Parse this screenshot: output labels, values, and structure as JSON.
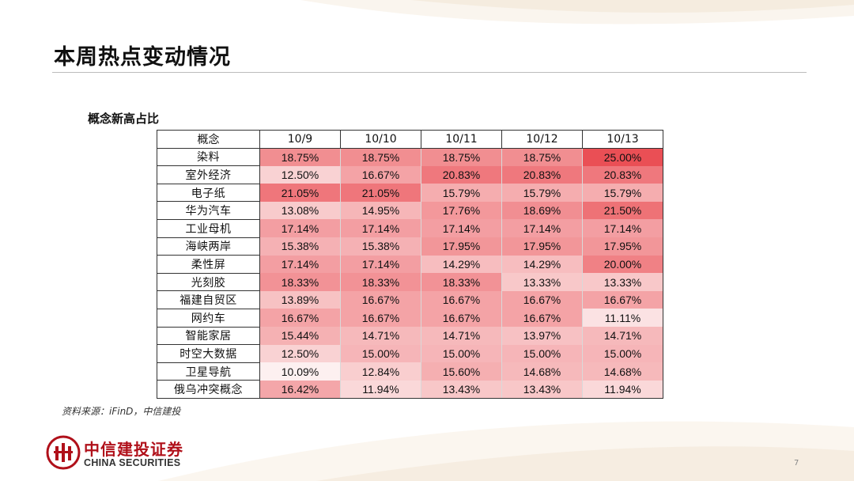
{
  "page_title": "本周热点变动情况",
  "section_title": "概念新高占比",
  "table": {
    "header": [
      "概念",
      "10/9",
      "10/10",
      "10/11",
      "10/12",
      "10/13"
    ],
    "rows": [
      {
        "name": "染料",
        "values": [
          "18.75%",
          "18.75%",
          "18.75%",
          "18.75%",
          "25.00%"
        ]
      },
      {
        "name": "室外经济",
        "values": [
          "12.50%",
          "16.67%",
          "20.83%",
          "20.83%",
          "20.83%"
        ]
      },
      {
        "name": "电子纸",
        "values": [
          "21.05%",
          "21.05%",
          "15.79%",
          "15.79%",
          "15.79%"
        ]
      },
      {
        "name": "华为汽车",
        "values": [
          "13.08%",
          "14.95%",
          "17.76%",
          "18.69%",
          "21.50%"
        ]
      },
      {
        "name": "工业母机",
        "values": [
          "17.14%",
          "17.14%",
          "17.14%",
          "17.14%",
          "17.14%"
        ]
      },
      {
        "name": "海峡两岸",
        "values": [
          "15.38%",
          "15.38%",
          "17.95%",
          "17.95%",
          "17.95%"
        ]
      },
      {
        "name": "柔性屏",
        "values": [
          "17.14%",
          "17.14%",
          "14.29%",
          "14.29%",
          "20.00%"
        ]
      },
      {
        "name": "光刻胶",
        "values": [
          "18.33%",
          "18.33%",
          "18.33%",
          "13.33%",
          "13.33%"
        ]
      },
      {
        "name": "福建自贸区",
        "values": [
          "13.89%",
          "16.67%",
          "16.67%",
          "16.67%",
          "16.67%"
        ]
      },
      {
        "name": "网约车",
        "values": [
          "16.67%",
          "16.67%",
          "16.67%",
          "16.67%",
          "11.11%"
        ]
      },
      {
        "name": "智能家居",
        "values": [
          "15.44%",
          "14.71%",
          "14.71%",
          "13.97%",
          "14.71%"
        ]
      },
      {
        "name": "时空大数据",
        "values": [
          "12.50%",
          "15.00%",
          "15.00%",
          "15.00%",
          "15.00%"
        ]
      },
      {
        "name": "卫星导航",
        "values": [
          "10.09%",
          "12.84%",
          "15.60%",
          "14.68%",
          "14.68%"
        ]
      },
      {
        "name": "俄乌冲突概念",
        "values": [
          "16.42%",
          "11.94%",
          "13.43%",
          "13.43%",
          "11.94%"
        ]
      }
    ]
  },
  "heat_colors": {
    "low": "#fdf2f2",
    "high": "#ea4f55"
  },
  "source": "资料来源：iFinD，中信建投",
  "logo": {
    "cn": "中信建投证券",
    "en": "CHINA SECURITIES",
    "icon": "citic-logo-icon",
    "color": "#b0101a"
  },
  "page_number": "7"
}
